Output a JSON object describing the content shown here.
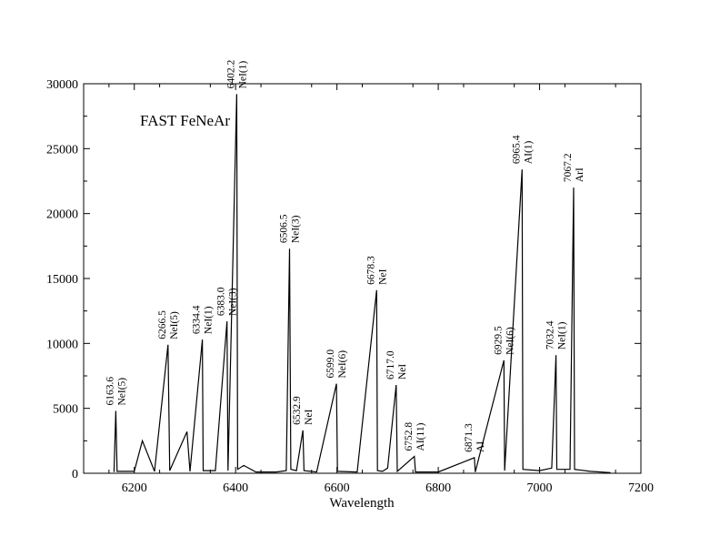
{
  "chart_data": {
    "type": "line",
    "title": "FAST FeNeAr",
    "xlabel": "Wavelength",
    "ylabel": "",
    "xlim": [
      6100,
      7200
    ],
    "ylim": [
      0,
      30000
    ],
    "xticks": [
      6200,
      6400,
      6600,
      6800,
      7000,
      7200
    ],
    "yticks": [
      0,
      5000,
      10000,
      15000,
      20000,
      25000,
      30000
    ],
    "xtick_labels": [
      "6200",
      "6400",
      "6600",
      "6800",
      "7000",
      "7200"
    ],
    "ytick_labels": [
      "0",
      "5000",
      "10000",
      "15000",
      "20000",
      "25000",
      "30000"
    ],
    "grid": false,
    "legend": "none",
    "series": [
      {
        "color": "#000000",
        "x": [
          6160,
          6163.6,
          6166,
          6200,
          6216,
          6240,
          6266.5,
          6270,
          6304,
          6310,
          6334.4,
          6336,
          6360,
          6383.0,
          6385,
          6402.2,
          6404,
          6416,
          6440,
          6480,
          6500,
          6506.5,
          6509,
          6520,
          6532.9,
          6535,
          6560,
          6599.0,
          6601,
          6640,
          6678.3,
          6680,
          6690,
          6700,
          6717.0,
          6719,
          6752.8,
          6755,
          6800,
          6871.3,
          6873,
          6929.5,
          6931,
          6965.4,
          6967,
          7000,
          7024,
          7032.4,
          7034,
          7060,
          7067.2,
          7069,
          7100,
          7140
        ],
        "y": [
          100,
          4800,
          150,
          150,
          2500,
          150,
          9900,
          200,
          3200,
          150,
          10300,
          200,
          200,
          11700,
          200,
          29200,
          300,
          600,
          100,
          100,
          200,
          17300,
          300,
          200,
          3300,
          200,
          100,
          6900,
          150,
          100,
          14100,
          200,
          150,
          400,
          6800,
          150,
          1300,
          100,
          100,
          1200,
          100,
          8700,
          200,
          23400,
          300,
          200,
          400,
          9100,
          300,
          300,
          22000,
          300,
          150,
          50
        ]
      }
    ],
    "annotations": [
      {
        "x": 6163.6,
        "y": 4800,
        "wavelength": "6163.6",
        "ion": "NeI(5)"
      },
      {
        "x": 6266.5,
        "y": 9900,
        "wavelength": "6266.5",
        "ion": "NeI(5)"
      },
      {
        "x": 6334.4,
        "y": 10300,
        "wavelength": "6334.4",
        "ion": "NeI(1)"
      },
      {
        "x": 6383.0,
        "y": 11700,
        "wavelength": "6383.0",
        "ion": "NeI(3)"
      },
      {
        "x": 6402.2,
        "y": 29200,
        "wavelength": "6402.2",
        "ion": "NeI(1)"
      },
      {
        "x": 6506.5,
        "y": 17300,
        "wavelength": "6506.5",
        "ion": "NeI(3)"
      },
      {
        "x": 6532.9,
        "y": 3300,
        "wavelength": "6532.9",
        "ion": "NeI"
      },
      {
        "x": 6599.0,
        "y": 6900,
        "wavelength": "6599.0",
        "ion": "NeI(6)"
      },
      {
        "x": 6678.3,
        "y": 14100,
        "wavelength": "6678.3",
        "ion": "NeI"
      },
      {
        "x": 6717.0,
        "y": 6800,
        "wavelength": "6717.0",
        "ion": "NeI"
      },
      {
        "x": 6752.8,
        "y": 1300,
        "wavelength": "6752.8",
        "ion": "AI(11)"
      },
      {
        "x": 6871.3,
        "y": 1200,
        "wavelength": "6871.3",
        "ion": "AI"
      },
      {
        "x": 6929.5,
        "y": 8700,
        "wavelength": "6929.5",
        "ion": "NeI(6)"
      },
      {
        "x": 6965.4,
        "y": 23400,
        "wavelength": "6965.4",
        "ion": "AI(1)"
      },
      {
        "x": 7032.4,
        "y": 9100,
        "wavelength": "7032.4",
        "ion": "NeI(1)"
      },
      {
        "x": 7067.2,
        "y": 22000,
        "wavelength": "7067.2",
        "ion": "ArI"
      }
    ]
  }
}
